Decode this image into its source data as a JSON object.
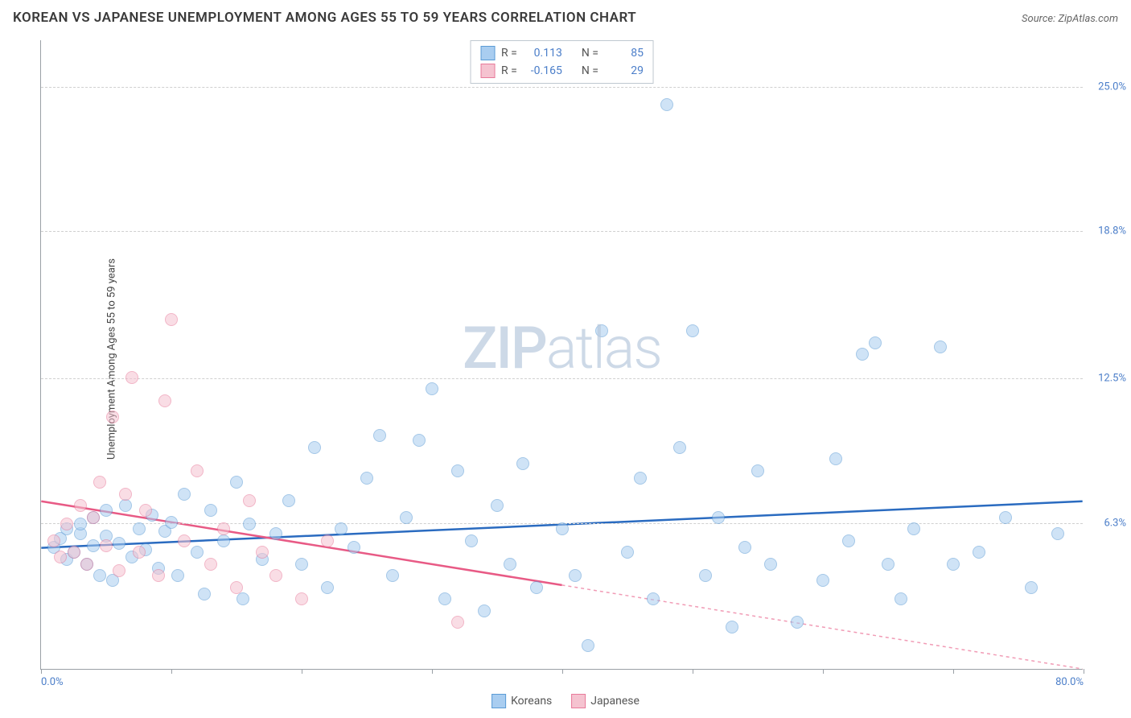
{
  "header": {
    "title": "KOREAN VS JAPANESE UNEMPLOYMENT AMONG AGES 55 TO 59 YEARS CORRELATION CHART",
    "source_prefix": "Source: ",
    "source": "ZipAtlas.com"
  },
  "chart": {
    "type": "scatter",
    "ylabel": "Unemployment Among Ages 55 to 59 years",
    "xlim": [
      0,
      80
    ],
    "ylim": [
      0,
      27
    ],
    "xtick_values": [
      0,
      10,
      20,
      30,
      40,
      50,
      60,
      70,
      80
    ],
    "xtick_labels": {
      "first": "0.0%",
      "last": "80.0%"
    },
    "ytick_values": [
      6.3,
      12.5,
      18.8,
      25.0
    ],
    "ytick_labels": [
      "6.3%",
      "12.5%",
      "18.8%",
      "25.0%"
    ],
    "background_color": "#ffffff",
    "grid_color": "#d0d0d0",
    "axis_color": "#9aa0a6",
    "marker_size": 16,
    "marker_opacity": 0.55,
    "watermark": "ZIPatlas",
    "series": [
      {
        "name": "Koreans",
        "fill_color": "#a9cdf0",
        "stroke_color": "#5b9bd5",
        "trend_color": "#2a6bc0",
        "trend": {
          "x1": 0,
          "y1": 5.2,
          "x2": 80,
          "y2": 7.2,
          "dash_after_x": 80
        },
        "stats": {
          "R": "0.113",
          "N": "85"
        },
        "points": [
          [
            1,
            5.2
          ],
          [
            1.5,
            5.6
          ],
          [
            2,
            6.0
          ],
          [
            2,
            4.7
          ],
          [
            2.5,
            5.0
          ],
          [
            3,
            5.8
          ],
          [
            3,
            6.2
          ],
          [
            3.5,
            4.5
          ],
          [
            4,
            5.3
          ],
          [
            4,
            6.5
          ],
          [
            4.5,
            4.0
          ],
          [
            5,
            5.7
          ],
          [
            5,
            6.8
          ],
          [
            5.5,
            3.8
          ],
          [
            6,
            5.4
          ],
          [
            6.5,
            7.0
          ],
          [
            7,
            4.8
          ],
          [
            7.5,
            6.0
          ],
          [
            8,
            5.1
          ],
          [
            8.5,
            6.6
          ],
          [
            9,
            4.3
          ],
          [
            9.5,
            5.9
          ],
          [
            10,
            6.3
          ],
          [
            10.5,
            4.0
          ],
          [
            11,
            7.5
          ],
          [
            12,
            5.0
          ],
          [
            12.5,
            3.2
          ],
          [
            13,
            6.8
          ],
          [
            14,
            5.5
          ],
          [
            15,
            8.0
          ],
          [
            15.5,
            3.0
          ],
          [
            16,
            6.2
          ],
          [
            17,
            4.7
          ],
          [
            18,
            5.8
          ],
          [
            19,
            7.2
          ],
          [
            20,
            4.5
          ],
          [
            21,
            9.5
          ],
          [
            22,
            3.5
          ],
          [
            23,
            6.0
          ],
          [
            24,
            5.2
          ],
          [
            25,
            8.2
          ],
          [
            26,
            10.0
          ],
          [
            27,
            4.0
          ],
          [
            28,
            6.5
          ],
          [
            29,
            9.8
          ],
          [
            30,
            12.0
          ],
          [
            31,
            3.0
          ],
          [
            32,
            8.5
          ],
          [
            33,
            5.5
          ],
          [
            34,
            2.5
          ],
          [
            35,
            7.0
          ],
          [
            36,
            4.5
          ],
          [
            37,
            8.8
          ],
          [
            38,
            3.5
          ],
          [
            40,
            6.0
          ],
          [
            41,
            4.0
          ],
          [
            42,
            1.0
          ],
          [
            43,
            14.5
          ],
          [
            45,
            5.0
          ],
          [
            46,
            8.2
          ],
          [
            47,
            3.0
          ],
          [
            48,
            24.2
          ],
          [
            49,
            9.5
          ],
          [
            50,
            14.5
          ],
          [
            51,
            4.0
          ],
          [
            52,
            6.5
          ],
          [
            53,
            1.8
          ],
          [
            54,
            5.2
          ],
          [
            55,
            8.5
          ],
          [
            56,
            4.5
          ],
          [
            58,
            2.0
          ],
          [
            60,
            3.8
          ],
          [
            61,
            9.0
          ],
          [
            62,
            5.5
          ],
          [
            63,
            13.5
          ],
          [
            64,
            14.0
          ],
          [
            65,
            4.5
          ],
          [
            66,
            3.0
          ],
          [
            67,
            6.0
          ],
          [
            69,
            13.8
          ],
          [
            70,
            4.5
          ],
          [
            72,
            5.0
          ],
          [
            74,
            6.5
          ],
          [
            76,
            3.5
          ],
          [
            78,
            5.8
          ]
        ]
      },
      {
        "name": "Japanese",
        "fill_color": "#f5c3d0",
        "stroke_color": "#e87a9a",
        "trend_color": "#e85a85",
        "trend": {
          "x1": 0,
          "y1": 7.2,
          "x2": 80,
          "y2": 0.0,
          "dash_after_x": 40
        },
        "stats": {
          "R": "-0.165",
          "N": "29"
        },
        "points": [
          [
            1,
            5.5
          ],
          [
            1.5,
            4.8
          ],
          [
            2,
            6.2
          ],
          [
            2.5,
            5.0
          ],
          [
            3,
            7.0
          ],
          [
            3.5,
            4.5
          ],
          [
            4,
            6.5
          ],
          [
            4.5,
            8.0
          ],
          [
            5,
            5.3
          ],
          [
            5.5,
            10.8
          ],
          [
            6,
            4.2
          ],
          [
            6.5,
            7.5
          ],
          [
            7,
            12.5
          ],
          [
            7.5,
            5.0
          ],
          [
            8,
            6.8
          ],
          [
            9,
            4.0
          ],
          [
            9.5,
            11.5
          ],
          [
            10,
            15.0
          ],
          [
            11,
            5.5
          ],
          [
            12,
            8.5
          ],
          [
            13,
            4.5
          ],
          [
            14,
            6.0
          ],
          [
            15,
            3.5
          ],
          [
            16,
            7.2
          ],
          [
            17,
            5.0
          ],
          [
            18,
            4.0
          ],
          [
            20,
            3.0
          ],
          [
            22,
            5.5
          ],
          [
            32,
            2.0
          ]
        ]
      }
    ],
    "legend_top": {
      "r_label": "R =",
      "n_label": "N ="
    },
    "legend_bottom": [
      {
        "label": "Koreans",
        "fill": "#a9cdf0",
        "stroke": "#5b9bd5"
      },
      {
        "label": "Japanese",
        "fill": "#f5c3d0",
        "stroke": "#e87a9a"
      }
    ]
  }
}
